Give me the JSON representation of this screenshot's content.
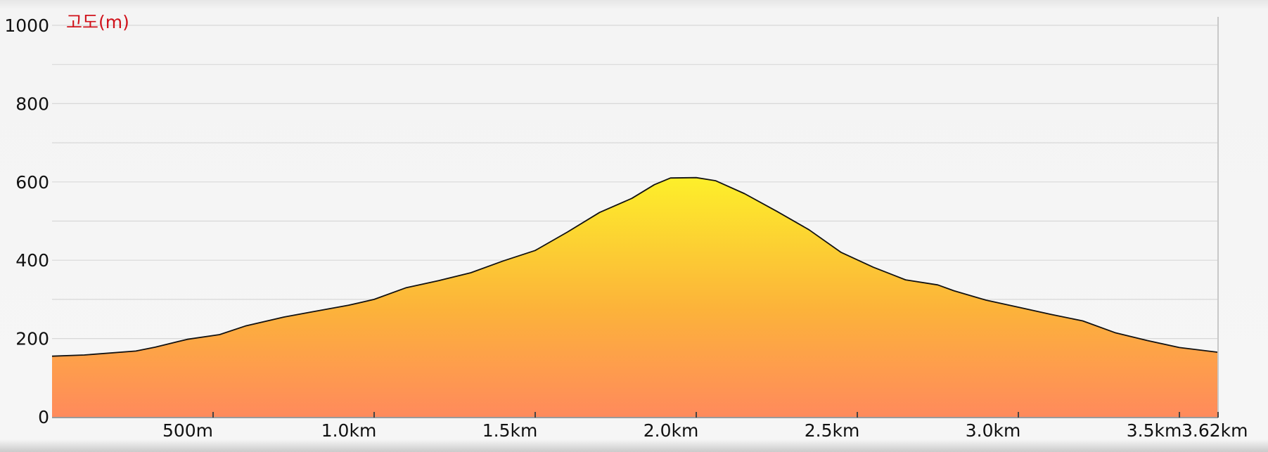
{
  "chart_data": {
    "type": "area",
    "ylabel": "고도(m)",
    "xlabel": "",
    "ylim": [
      0,
      1000
    ],
    "xlim": [
      0,
      3.62
    ],
    "grid": true,
    "y_ticks": [
      0,
      200,
      400,
      600,
      800,
      1000
    ],
    "y_tick_labels": [
      "0",
      "200",
      "400",
      "600",
      "800",
      "1000"
    ],
    "x_ticks": [
      0.5,
      1.0,
      1.5,
      2.0,
      2.5,
      3.0,
      3.5,
      3.62
    ],
    "x_tick_labels": [
      "500m",
      "1.0km",
      "1.5km",
      "2.0km",
      "2.5km",
      "3.0km",
      "3.5km",
      "3.62km"
    ],
    "series": [
      {
        "x": [
          0,
          0.1,
          0.26,
          0.32,
          0.42,
          0.52,
          0.6,
          0.72,
          0.8,
          0.92,
          1.0,
          1.1,
          1.2,
          1.3,
          1.4,
          1.5,
          1.6,
          1.7,
          1.8,
          1.87,
          1.92,
          2.0,
          2.06,
          2.15,
          2.25,
          2.35,
          2.45,
          2.55,
          2.65,
          2.75,
          2.8,
          2.9,
          3.0,
          3.1,
          3.2,
          3.3,
          3.4,
          3.5,
          3.62
        ],
        "y": [
          155,
          158,
          168,
          178,
          198,
          210,
          232,
          255,
          267,
          285,
          300,
          330,
          348,
          368,
          398,
          425,
          472,
          522,
          558,
          593,
          610,
          611,
          603,
          570,
          525,
          478,
          420,
          382,
          350,
          337,
          322,
          298,
          280,
          262,
          245,
          215,
          195,
          177,
          165
        ]
      }
    ],
    "colors": {
      "area_top": "#fdf02a",
      "area_mid": "#fcb33a",
      "area_bottom": "#ff8a5c",
      "line": "#111111",
      "grid": "#d8d8d8",
      "unit_label": "#d0121b"
    }
  }
}
